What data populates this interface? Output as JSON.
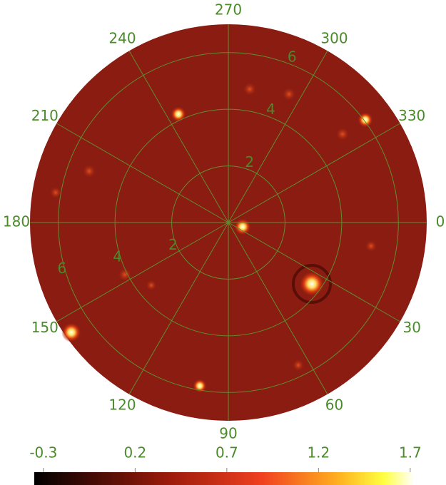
{
  "chart_data": {
    "type": "polar",
    "thetaticks": [
      0,
      30,
      60,
      90,
      120,
      150,
      180,
      210,
      240,
      270,
      300,
      330
    ],
    "rlim": [
      0,
      7
    ],
    "rticks": [
      2,
      4,
      6
    ],
    "grid": true,
    "grid_color": "#5f8f2f",
    "label_color": "#4a8a2a",
    "colorbar": {
      "clim": [
        -0.35,
        1.72
      ],
      "ticks": [
        -0.3,
        0.2,
        0.7,
        1.2,
        1.7
      ]
    }
  }
}
